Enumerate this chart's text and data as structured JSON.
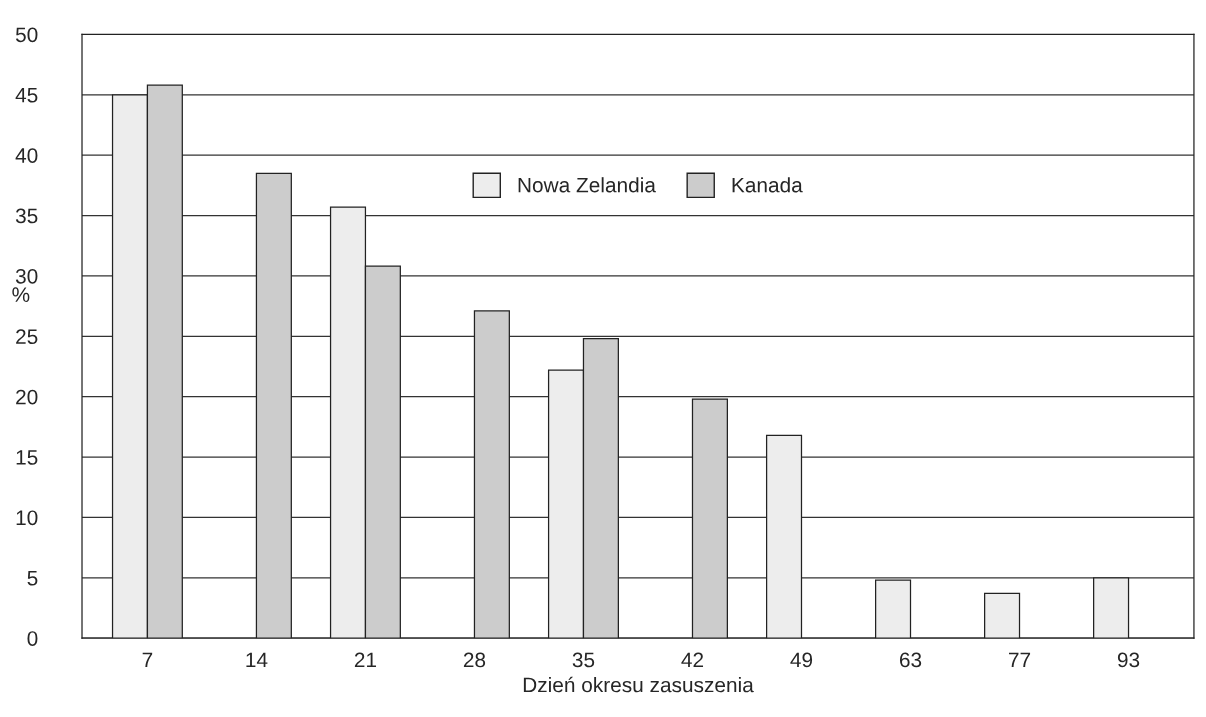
{
  "chart_data": {
    "type": "bar",
    "xlabel": "Dzień okresu zasuszenia",
    "ylabel": "%",
    "categories": [
      "7",
      "14",
      "21",
      "28",
      "35",
      "42",
      "49",
      "63",
      "77",
      "93"
    ],
    "series": [
      {
        "name": "Nowa Zelandia",
        "color": "#ededed",
        "values": [
          45,
          null,
          35.7,
          null,
          22.2,
          null,
          16.8,
          4.8,
          3.7,
          5.0
        ]
      },
      {
        "name": "Kanada",
        "color": "#cccccc",
        "values": [
          45.8,
          38.5,
          30.8,
          27.1,
          24.8,
          19.8,
          null,
          null,
          null,
          null
        ]
      }
    ],
    "ylim": [
      0,
      50
    ],
    "yticks": [
      0,
      5,
      10,
      15,
      20,
      25,
      30,
      35,
      40,
      45,
      50
    ],
    "grid": "y",
    "legend": "top"
  }
}
